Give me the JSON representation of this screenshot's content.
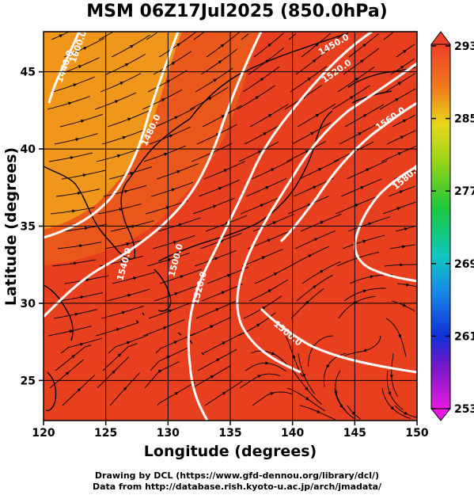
{
  "title": "MSM 06Z17Jul2025 (850.0hPa)",
  "axes": {
    "xlabel": "Longitude (degrees)",
    "ylabel": "Latitude  (degrees)",
    "x_ticks": [
      "120",
      "125",
      "130",
      "135",
      "140",
      "145",
      "150"
    ],
    "y_ticks": [
      "25",
      "30",
      "35",
      "40",
      "45"
    ],
    "x_range": [
      120,
      150
    ],
    "y_range": [
      22.4,
      47.6
    ]
  },
  "colorbar": {
    "ticks": [
      "293",
      "285",
      "277",
      "269",
      "261",
      "253"
    ],
    "range": [
      253,
      293
    ]
  },
  "contours": [
    {
      "label": "1440.0"
    },
    {
      "label": "1450.0"
    },
    {
      "label": "1480.0"
    },
    {
      "label": "1500.0"
    },
    {
      "label": "1500.0"
    },
    {
      "label": "1520.0"
    },
    {
      "label": "1520.0"
    },
    {
      "label": "1540.0"
    },
    {
      "label": "1560.0"
    },
    {
      "label": "1580.0"
    },
    {
      "label": "1600.0"
    }
  ],
  "footer": {
    "line1": "Drawing by DCL (https://www.gfd-dennou.org/library/dcl/)",
    "line2": "Data from http://database.rish.kyoto-u.ac.jp/arch/jmadata/"
  },
  "colors": {
    "warm": "#e8401e",
    "orange": "#ec6c1c",
    "amber": "#f0961a",
    "contour": "#ffffff",
    "coast": "#000000"
  }
}
